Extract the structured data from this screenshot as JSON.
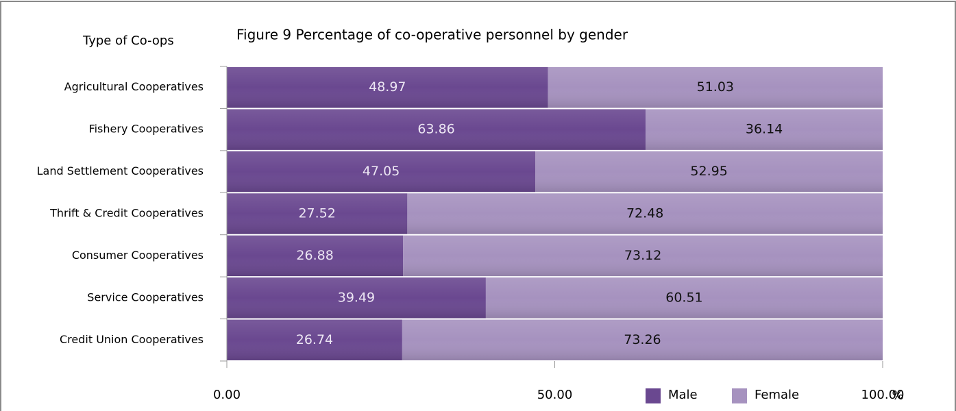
{
  "chart_data": {
    "type": "stacked_barh",
    "title": "Figure 9 Percentage of co-operative personnel by gender",
    "y_label": "Type of Co-ops",
    "x_label": "%",
    "categories": [
      "Agricultural Cooperatives",
      "Fishery Cooperatives",
      "Land Settlement Cooperatives",
      "Thrift & Credit Cooperatives",
      "Consumer Cooperatives",
      "Service Cooperatives",
      "Credit Union Cooperatives"
    ],
    "series": [
      {
        "name": "Male",
        "color": "#6a4890",
        "values": [
          48.97,
          63.86,
          47.05,
          27.52,
          26.88,
          39.49,
          26.74
        ]
      },
      {
        "name": "Female",
        "color": "#a692bf",
        "values": [
          51.03,
          36.14,
          52.95,
          72.48,
          73.12,
          60.51,
          73.26
        ]
      }
    ],
    "xlim": [
      0,
      100
    ],
    "xticks": [
      {
        "value": 0,
        "label": "0.00"
      },
      {
        "value": 50,
        "label": "50.00"
      },
      {
        "value": 100,
        "label": "100.00"
      }
    ]
  }
}
